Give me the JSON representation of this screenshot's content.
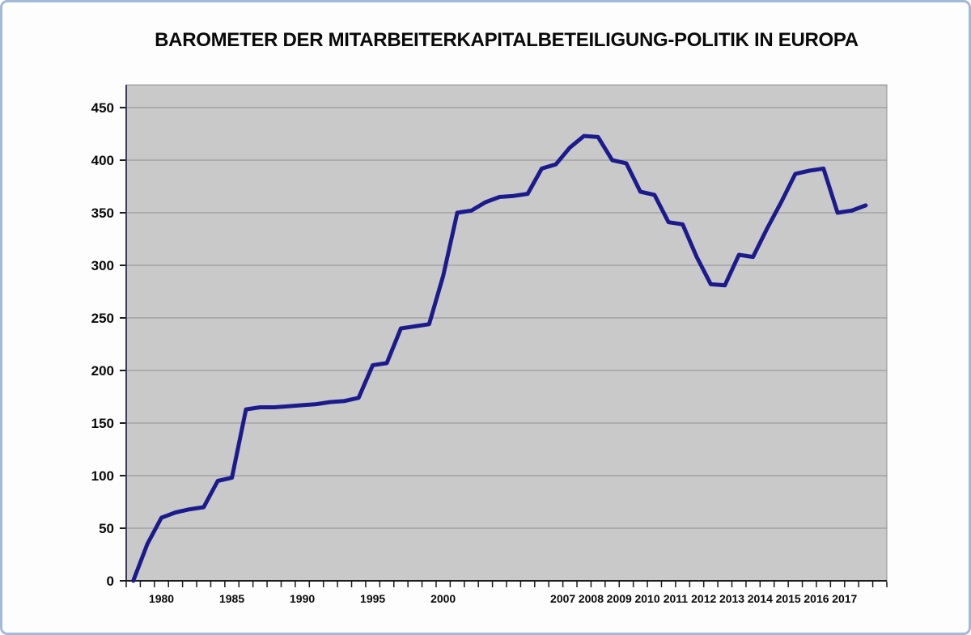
{
  "title": "BAROMETER DER MITARBEITERKAPITALBETEILIGUNG-POLITIK IN EUROPA",
  "frame": {
    "border_color": "#a3b9d8",
    "background": "#fdfdfe"
  },
  "chart_data": {
    "type": "line",
    "title": "BAROMETER DER MITARBEITERKAPITALBETEILIGUNG-POLITIK IN EUROPA",
    "xlabel": "",
    "ylabel": "",
    "ylim": [
      0,
      450
    ],
    "ytick_step": 50,
    "yticks": [
      0,
      50,
      100,
      150,
      200,
      250,
      300,
      350,
      400,
      450
    ],
    "grid": "horizontal",
    "legend": "none",
    "line_color": "#1b1b8e",
    "plot_background": "#c9c9c9",
    "gridline_color": "#909090",
    "categories": [
      "1978",
      "1979",
      "1980",
      "1981",
      "1982",
      "1983",
      "1984",
      "1985",
      "1986",
      "1987",
      "1988",
      "1989",
      "1990",
      "1991",
      "1992",
      "1993",
      "1994",
      "1995",
      "1996",
      "1997",
      "1998",
      "1999",
      "2000",
      "2001",
      "2002",
      "2003",
      "2004",
      "2005",
      "2006 H1",
      "2006 H2",
      "2007 H1",
      "2007 H2",
      "2008 H1",
      "2008 H2",
      "2009 H1",
      "2009 H2",
      "2010 H1",
      "2010 H2",
      "2011 H1",
      "2011 H2",
      "2012 H1",
      "2012 H2",
      "2013 H1",
      "2013 H2",
      "2014 H1",
      "2014 H2",
      "2015 H1",
      "2015 H2",
      "2016 H1",
      "2016 H2",
      "2017 H1",
      "2017 H2",
      "2018 H1",
      "2018 H2"
    ],
    "values": [
      0,
      35,
      60,
      65,
      68,
      70,
      95,
      98,
      163,
      165,
      165,
      166,
      167,
      168,
      170,
      171,
      174,
      205,
      207,
      240,
      242,
      244,
      290,
      350,
      352,
      360,
      365,
      366,
      368,
      392,
      396,
      412,
      423,
      422,
      400,
      397,
      370,
      367,
      341,
      339,
      308,
      282,
      281,
      310,
      308,
      335,
      360,
      387,
      390,
      392,
      350,
      352,
      357,
      null
    ],
    "x_axis_labels": [
      {
        "label": "1980",
        "slot": 2,
        "span": 1
      },
      {
        "label": "1985",
        "slot": 7,
        "span": 1
      },
      {
        "label": "1990",
        "slot": 12,
        "span": 1
      },
      {
        "label": "1995",
        "slot": 17,
        "span": 1
      },
      {
        "label": "2000",
        "slot": 22,
        "span": 1
      },
      {
        "label": "2007",
        "slot": 30,
        "span": 2
      },
      {
        "label": "2008",
        "slot": 32,
        "span": 2
      },
      {
        "label": "2009",
        "slot": 34,
        "span": 2
      },
      {
        "label": "2010",
        "slot": 36,
        "span": 2
      },
      {
        "label": "2011",
        "slot": 38,
        "span": 2
      },
      {
        "label": "2012",
        "slot": 40,
        "span": 2
      },
      {
        "label": "2013",
        "slot": 42,
        "span": 2
      },
      {
        "label": "2014",
        "slot": 44,
        "span": 2
      },
      {
        "label": "2015",
        "slot": 46,
        "span": 2
      },
      {
        "label": "2016",
        "slot": 48,
        "span": 2
      },
      {
        "label": "2017",
        "slot": 50,
        "span": 2
      }
    ]
  }
}
